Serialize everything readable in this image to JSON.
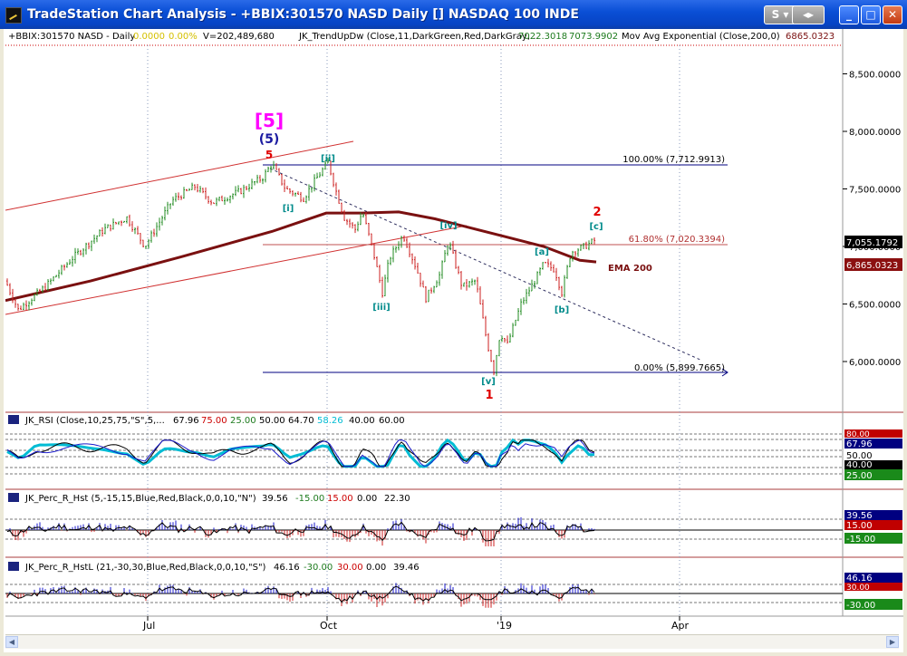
{
  "window": {
    "title": "TradeStation Chart Analysis - +BBIX:301570 NASD Daily [] NASDAQ 100 INDE",
    "buttons": {
      "s": "S",
      "arrows": "◂▸",
      "min": "_",
      "max": "□",
      "close": "✕"
    }
  },
  "price_pane": {
    "header": {
      "symbol": "+BBIX:301570 NASD - Daily",
      "change": "0.0000",
      "change_pct": "0.00%",
      "volume": "V=202,489,680",
      "indicator": "JK_TrendUpDw (Close,11,DarkGreen,Red,DarkGray,...",
      "ind_val1": "7022.3018",
      "ind_val2": "7073.9902",
      "ma": "Mov Avg Exponential (Close,200,0)",
      "ma_val": "6865.0323"
    },
    "y_axis": [
      "8,500.0000",
      "8,000.0000",
      "7,500.0000",
      "7,000.0000",
      "6,500.0000",
      "6,000.0000"
    ],
    "y_values": [
      8500,
      8000,
      7500,
      7000,
      6500,
      6000
    ],
    "last_price": "7,055.1792",
    "ema_value": "6,865.0323",
    "fib": {
      "level_100": "100.00% (7,712.9913)",
      "level_618": "61.80% (7,020.3394)",
      "level_0": "0.00% (5,899.7665)"
    },
    "labels": {
      "big5": "[5]",
      "paren5": "(5)",
      "red5": "5",
      "red2": "2",
      "red1": "1",
      "i": "[i]",
      "ii": "[ii]",
      "iii": "[iii]",
      "iv": "[iv]",
      "v": "[v]",
      "a": "[a]",
      "b": "[b]",
      "c": "[c]",
      "ema": "EMA 200"
    }
  },
  "rsi_pane": {
    "header": {
      "name": "JK_RSI (Close,10,25,75,\"S\",5,...",
      "v1": "67.96",
      "v2": "75.00",
      "v3": "25.00",
      "v4": "50.00",
      "v5": "64.70",
      "v6": "58.26",
      "v7": "40.00",
      "v8": "60.00"
    },
    "y_axis": {
      "top": "80.00",
      "v1": "67.96",
      "v2": "50.00",
      "v3": "40.00",
      "v4": "25.00"
    }
  },
  "perc1_pane": {
    "header": {
      "name": "JK_Perc_R_Hst (5,-15,15,Blue,Red,Black,0,0,10,\"N\")",
      "v1": "39.56",
      "v2": "-15.00",
      "v3": "15.00",
      "v4": "0.00",
      "v5": "22.30"
    },
    "y_axis": {
      "v1": "39.56",
      "v2": "15.00",
      "v3": "-15.00"
    }
  },
  "perc2_pane": {
    "header": {
      "name": "JK_Perc_R_HstL (21,-30,30,Blue,Red,Black,0,0,10,\"S\")",
      "v1": "46.16",
      "v2": "-30.00",
      "v3": "30.00",
      "v4": "0.00",
      "v5": "39.46"
    },
    "y_axis": {
      "v1": "46.16",
      "v2": "30.00",
      "v3": "-30.00"
    }
  },
  "x_axis": {
    "jul": "Jul",
    "oct": "Oct",
    "jan": "'19",
    "apr": "Apr"
  },
  "colors": {
    "up": "#228b22",
    "down": "#cc2222",
    "ema": "#7a1010",
    "fib": "#000080",
    "rsi_fast": "#000000",
    "rsi_slow": "#00bcd4",
    "wave_minor": "#008b8b",
    "wave_major": "#1a1aa0",
    "wave_big": "#ff00ff",
    "wave_red": "#e00000"
  }
}
